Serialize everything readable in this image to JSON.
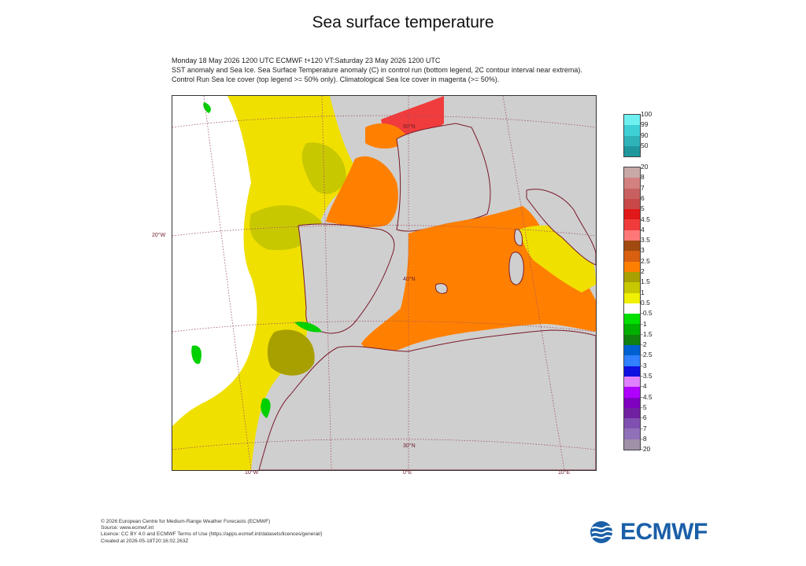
{
  "title": "Sea surface temperature",
  "subtitle": [
    "Monday 18 May 2026 1200 UTC  ECMWF  t+120  VT:Saturday 23 May 2026 1200 UTC",
    "SST anomaly and Sea Ice. Sea Surface Temperature anomaly (C) in control run (bottom legend, 2C contour interval near extrema).",
    "Control Run Sea Ice cover (top legend >= 50% only). Climatological Sea Ice cover in magenta (>= 50%)."
  ],
  "map_labels": {
    "lat_50": "50°N",
    "lat_40": "40°N",
    "lat_30": "30°N",
    "lon_20w": "20°W",
    "lon_10w": "10°W",
    "lon_0": "0°E",
    "lon_10e": "10°E"
  },
  "ice_legend": {
    "labels": [
      "100",
      "99",
      "90",
      "50"
    ],
    "colors": [
      "#6ff0f0",
      "#3fd0d6",
      "#2fb2b8",
      "#1f979c"
    ]
  },
  "sst_legend": {
    "labels": [
      "20",
      "8",
      "7",
      "6",
      "5",
      "4.5",
      "4",
      "3.5",
      "3",
      "2.5",
      "2",
      "1.5",
      "1",
      "0.5",
      "-0.5",
      "-1",
      "-1.5",
      "-2",
      "-2.5",
      "-3",
      "-3.5",
      "-4",
      "-4.5",
      "-5",
      "-6",
      "-7",
      "-8",
      "-20"
    ],
    "colors": [
      "#c8a8a8",
      "#d38080",
      "#c86060",
      "#c84848",
      "#e01818",
      "#f03c3c",
      "#ff7878",
      "#a04a10",
      "#d86010",
      "#ff8000",
      "#a8a000",
      "#c8c800",
      "#f0f000",
      "#ffffff",
      "#00e000",
      "#00b000",
      "#108010",
      "#0060d0",
      "#3080ff",
      "#1010e0",
      "#e080ff",
      "#b000ff",
      "#8000c0",
      "#7020a0",
      "#8050b0",
      "#9070b8",
      "#a090a8"
    ]
  },
  "footer": [
    "© 2026 European Centre for Medium-Range Weather Forecasts (ECMWF)",
    "Source: www.ecmwf.int",
    "Licence: CC BY 4.0 and ECMWF Terms of Use (https://apps.ecmwf.int/datasets/licences/general/)",
    "Created at 2026-05-18T20:16:02.263Z"
  ],
  "logo_text": "ECMWF"
}
